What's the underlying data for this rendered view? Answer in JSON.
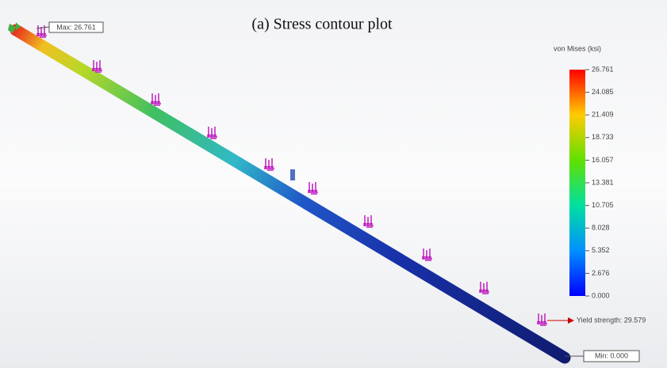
{
  "title": "(a) Stress contour plot",
  "max_label": "Max: 26.761",
  "min_label": "Min: 0.000",
  "yield_label": "Yield strength: 29.579",
  "legend": {
    "title": "von Mises (ksi)",
    "labels": [
      "26.761",
      "24.085",
      "21.409",
      "18.733",
      "16.057",
      "13.381",
      "10.705",
      "8.028",
      "5.352",
      "2.676",
      "0.000"
    ]
  }
}
